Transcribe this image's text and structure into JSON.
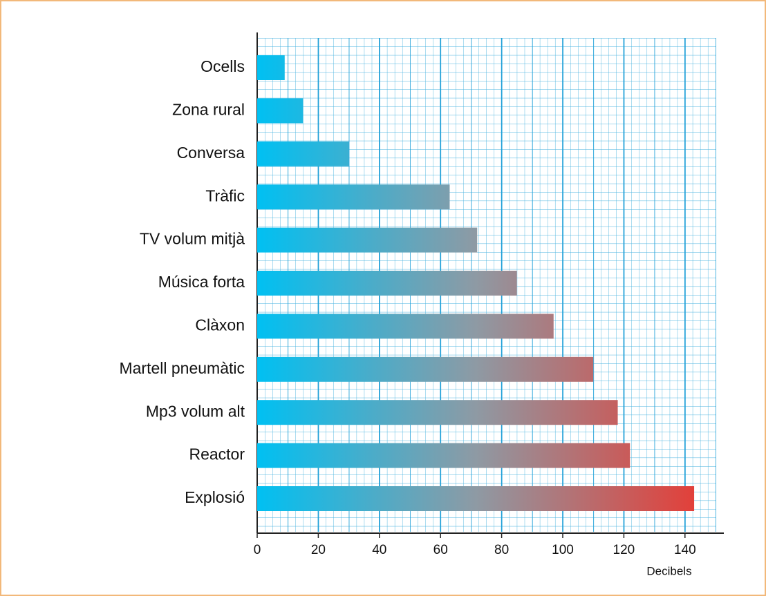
{
  "chart_data": {
    "type": "bar",
    "orientation": "horizontal",
    "categories": [
      "Ocells",
      "Zona rural",
      "Conversa",
      "Tràfic",
      "TV volum mitjà",
      "Música forta",
      "Clàxon",
      "Martell pneumàtic",
      "Mp3 volum alt",
      "Reactor",
      "Explosió"
    ],
    "values": [
      9,
      15,
      30,
      63,
      72,
      85,
      97,
      110,
      118,
      122,
      143
    ],
    "colors": [
      "#00c0f2",
      "#8e9aa4",
      "#e2403a"
    ],
    "xlabel": "Decibels",
    "xlim": [
      0,
      150
    ],
    "xticks": [
      0,
      20,
      40,
      60,
      80,
      100,
      120,
      140
    ],
    "grid": true
  }
}
